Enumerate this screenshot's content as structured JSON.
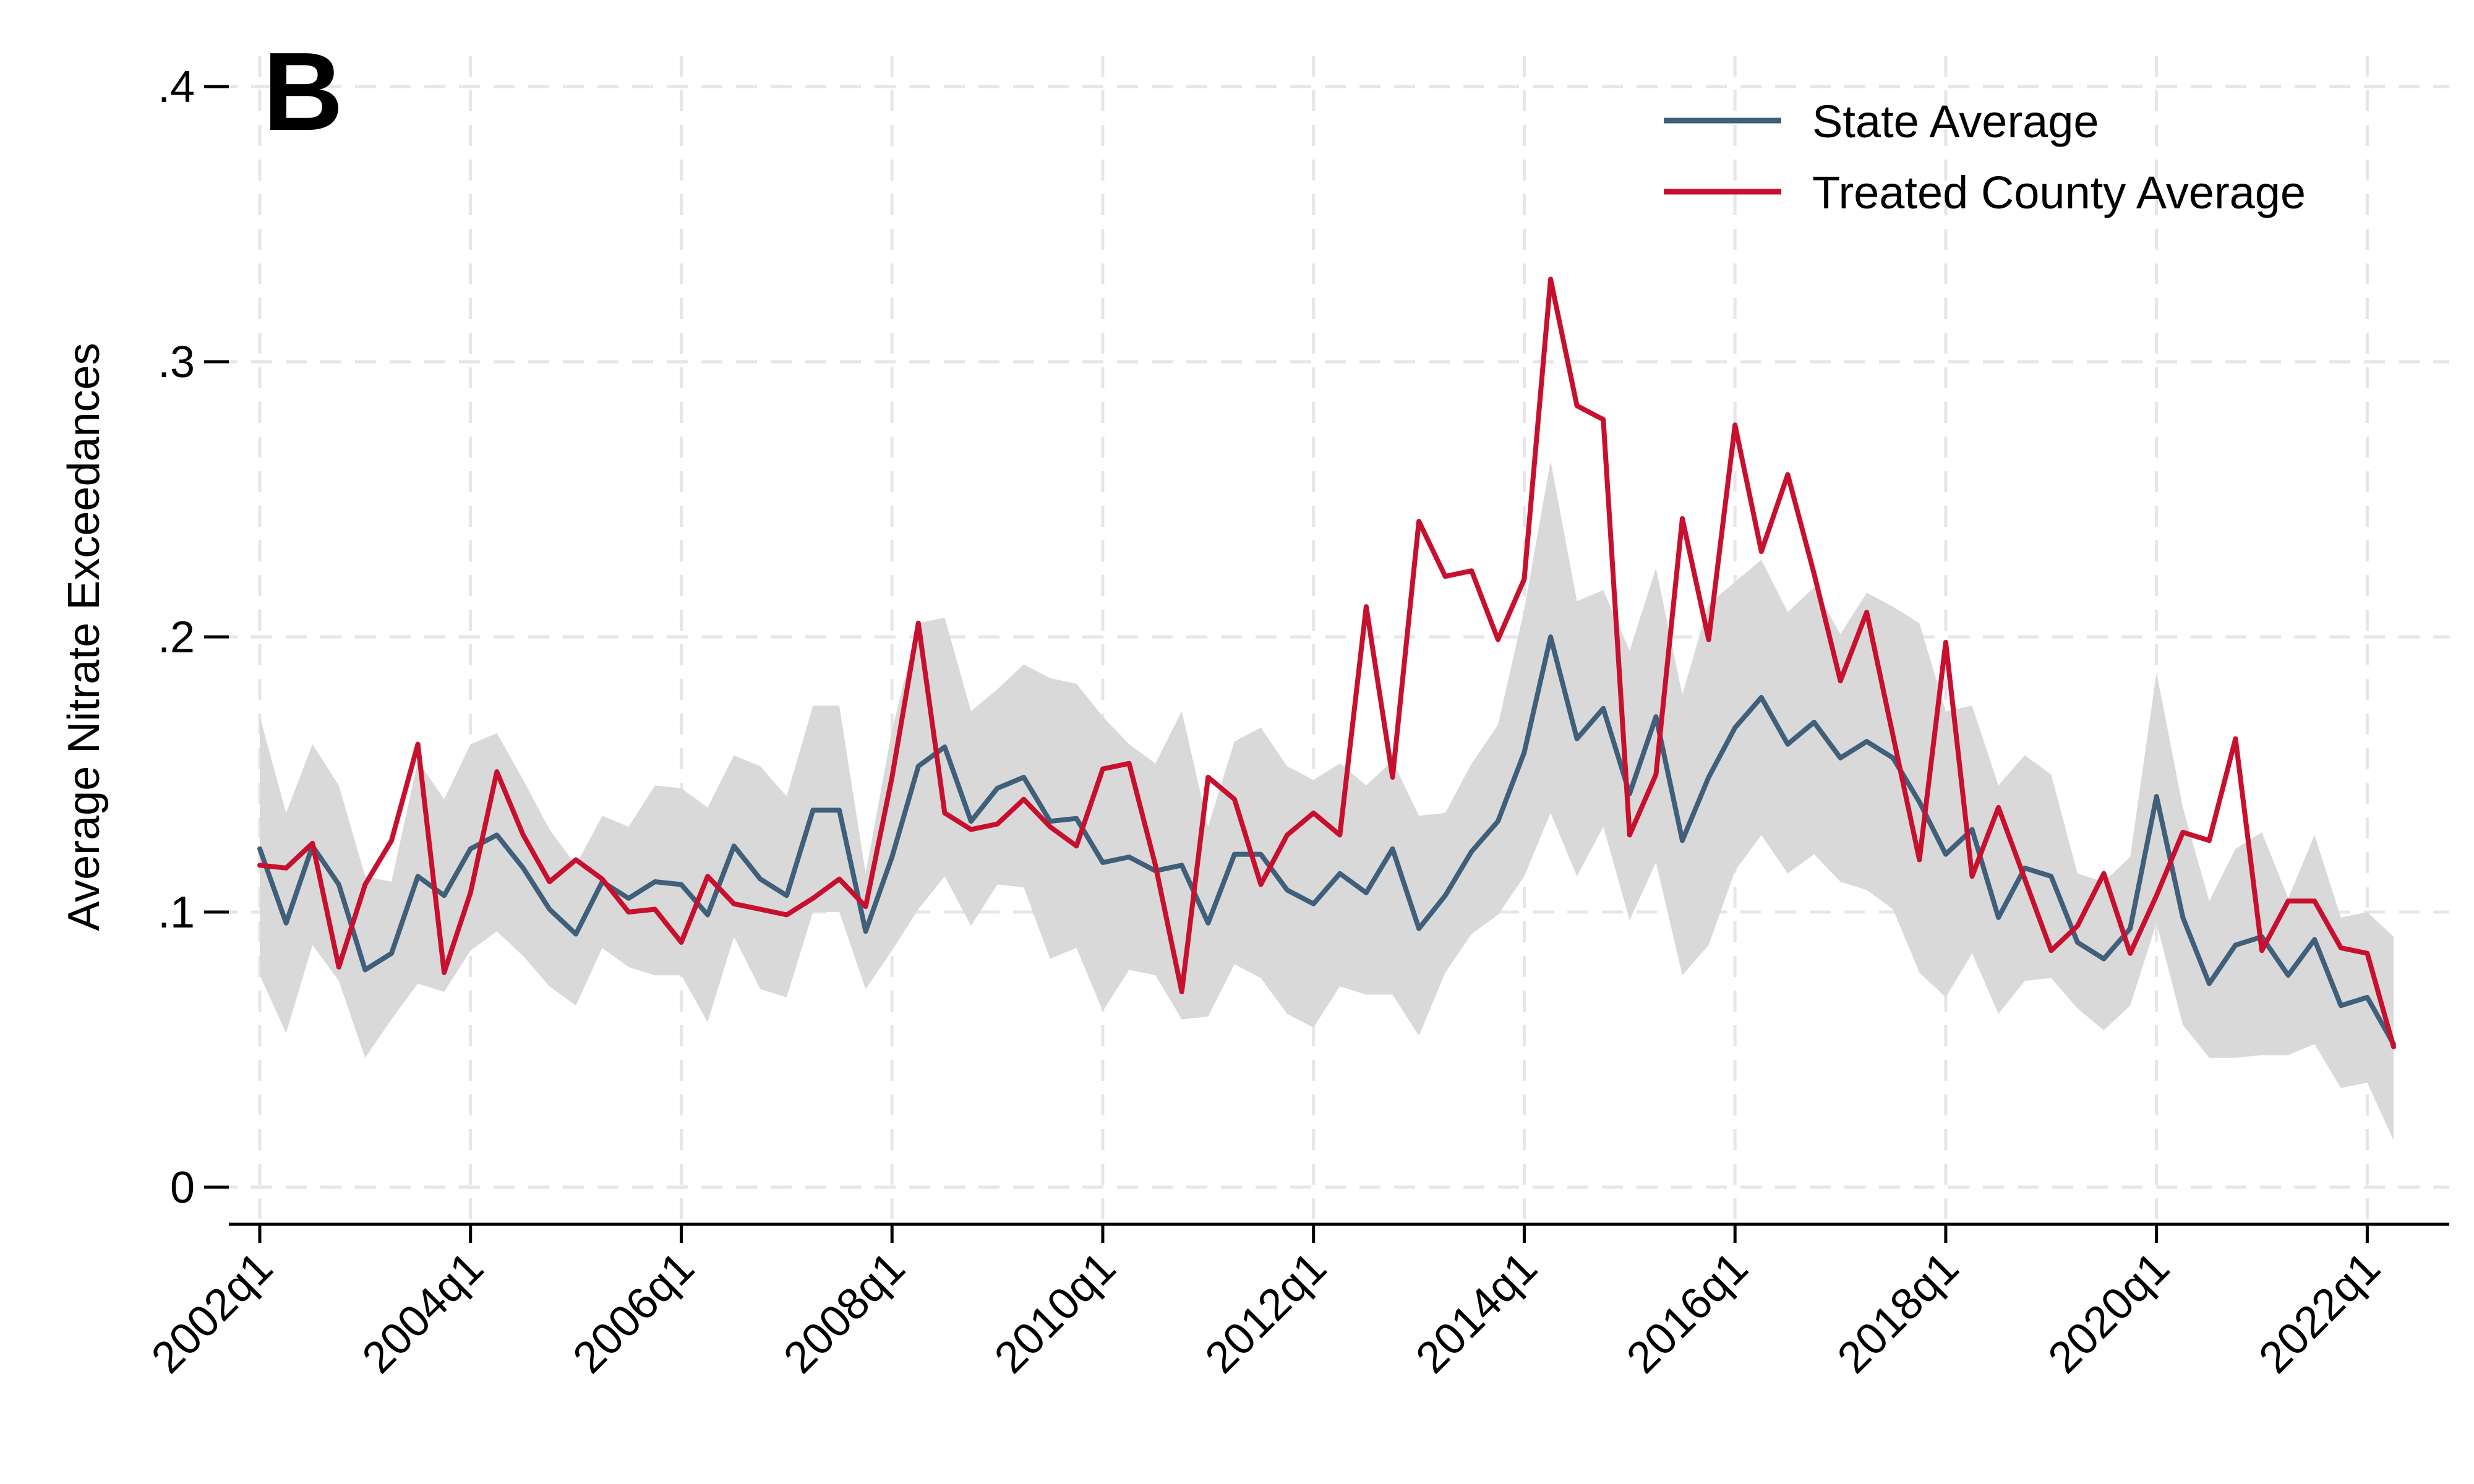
{
  "panel_label": "B",
  "colors": {
    "state_line": "#3f5f7a",
    "treated_line": "#c8102e",
    "band_fill": "#d9d9d9",
    "grid": "#e6e6e6",
    "axis": "#000000"
  },
  "chart_data": {
    "type": "line",
    "ylabel": "Average Nitrate Exceedances",
    "xlabel": "",
    "ylim": [
      0,
      0.4
    ],
    "y_ticks": [
      0,
      0.1,
      0.2,
      0.3,
      0.4
    ],
    "y_tick_labels": [
      "0",
      ".1",
      ".2",
      ".3",
      ".4"
    ],
    "x_tick_labels": [
      "2002q1",
      "2004q1",
      "2006q1",
      "2008q1",
      "2010q1",
      "2012q1",
      "2014q1",
      "2016q1",
      "2018q1",
      "2020q1",
      "2022q1"
    ],
    "x_tick_indices": [
      0,
      8,
      16,
      24,
      32,
      40,
      48,
      56,
      64,
      72,
      80
    ],
    "x_period_start": "2002q1",
    "x_period_end": "2022q2",
    "grid": true,
    "legend_position": "top-right",
    "series": [
      {
        "name": "State Average",
        "values": [
          0.123,
          0.096,
          0.124,
          0.11,
          0.079,
          0.085,
          0.113,
          0.106,
          0.123,
          0.128,
          0.116,
          0.101,
          0.092,
          0.111,
          0.105,
          0.111,
          0.11,
          0.099,
          0.124,
          0.112,
          0.106,
          0.137,
          0.137,
          0.093,
          0.12,
          0.153,
          0.16,
          0.133,
          0.145,
          0.149,
          0.133,
          0.134,
          0.118,
          0.12,
          0.115,
          0.117,
          0.096,
          0.121,
          0.121,
          0.108,
          0.103,
          0.114,
          0.107,
          0.123,
          0.094,
          0.106,
          0.122,
          0.133,
          0.158,
          0.2,
          0.163,
          0.174,
          0.143,
          0.171,
          0.126,
          0.149,
          0.167,
          0.178,
          0.161,
          0.169,
          0.156,
          0.162,
          0.156,
          0.14,
          0.121,
          0.13,
          0.098,
          0.116,
          0.113,
          0.089,
          0.083,
          0.094,
          0.142,
          0.098,
          0.074,
          0.088,
          0.091,
          0.077,
          0.09,
          0.066,
          0.069,
          0.052
        ]
      },
      {
        "name": "Treated County Average",
        "values": [
          0.117,
          0.116,
          0.125,
          0.08,
          0.11,
          0.126,
          0.161,
          0.078,
          0.107,
          0.151,
          0.128,
          0.111,
          0.119,
          0.112,
          0.1,
          0.101,
          0.089,
          0.113,
          0.103,
          0.101,
          0.099,
          0.105,
          0.112,
          0.102,
          0.149,
          0.205,
          0.136,
          0.13,
          0.132,
          0.141,
          0.131,
          0.124,
          0.152,
          0.154,
          0.117,
          0.071,
          0.149,
          0.141,
          0.11,
          0.128,
          0.136,
          0.128,
          0.211,
          0.149,
          0.242,
          0.222,
          0.224,
          0.199,
          0.221,
          0.33,
          0.284,
          0.279,
          0.128,
          0.15,
          0.243,
          0.199,
          0.277,
          0.231,
          0.259,
          0.223,
          0.184,
          0.209,
          0.164,
          0.119,
          0.198,
          0.113,
          0.138,
          0.112,
          0.086,
          0.095,
          0.114,
          0.085,
          0.106,
          0.129,
          0.126,
          0.163,
          0.086,
          0.104,
          0.104,
          0.087,
          0.085,
          0.051
        ]
      }
    ],
    "band": {
      "upper": [
        0.171,
        0.136,
        0.161,
        0.146,
        0.113,
        0.111,
        0.155,
        0.141,
        0.161,
        0.165,
        0.148,
        0.13,
        0.117,
        0.135,
        0.131,
        0.146,
        0.145,
        0.138,
        0.157,
        0.153,
        0.142,
        0.175,
        0.175,
        0.114,
        0.166,
        0.205,
        0.207,
        0.173,
        0.181,
        0.19,
        0.185,
        0.183,
        0.171,
        0.161,
        0.154,
        0.173,
        0.131,
        0.162,
        0.167,
        0.153,
        0.148,
        0.154,
        0.146,
        0.155,
        0.135,
        0.136,
        0.154,
        0.168,
        0.21,
        0.264,
        0.213,
        0.217,
        0.195,
        0.225,
        0.179,
        0.212,
        0.22,
        0.228,
        0.209,
        0.218,
        0.201,
        0.216,
        0.211,
        0.205,
        0.173,
        0.175,
        0.146,
        0.157,
        0.15,
        0.114,
        0.111,
        0.12,
        0.187,
        0.138,
        0.104,
        0.123,
        0.129,
        0.105,
        0.128,
        0.098,
        0.1,
        0.091
      ],
      "lower": [
        0.077,
        0.056,
        0.088,
        0.075,
        0.047,
        0.061,
        0.074,
        0.071,
        0.086,
        0.093,
        0.084,
        0.073,
        0.066,
        0.087,
        0.08,
        0.077,
        0.077,
        0.06,
        0.091,
        0.072,
        0.069,
        0.1,
        0.1,
        0.072,
        0.086,
        0.101,
        0.113,
        0.095,
        0.11,
        0.109,
        0.083,
        0.087,
        0.064,
        0.079,
        0.077,
        0.061,
        0.062,
        0.081,
        0.076,
        0.063,
        0.058,
        0.073,
        0.07,
        0.07,
        0.055,
        0.078,
        0.092,
        0.099,
        0.113,
        0.136,
        0.113,
        0.131,
        0.097,
        0.118,
        0.077,
        0.088,
        0.115,
        0.128,
        0.114,
        0.121,
        0.111,
        0.108,
        0.101,
        0.078,
        0.069,
        0.085,
        0.063,
        0.075,
        0.076,
        0.065,
        0.057,
        0.066,
        0.096,
        0.059,
        0.047,
        0.047,
        0.048,
        0.048,
        0.052,
        0.036,
        0.038,
        0.017
      ]
    }
  }
}
